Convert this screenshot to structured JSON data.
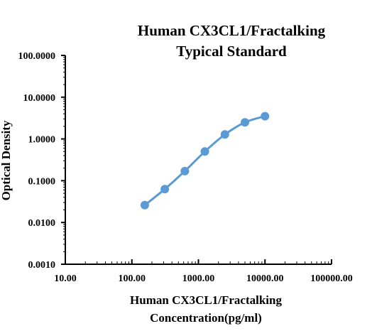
{
  "chart_data": {
    "type": "line",
    "title": [
      "Human CX3CL1/Fractalking",
      "Typical Standard"
    ],
    "xlabel": [
      "Human CX3CL1/Fractalking",
      "Concentration(pg/ml)"
    ],
    "ylabel": "Optical Density",
    "x_scale": "log",
    "y_scale": "log",
    "xlim": [
      10,
      100000
    ],
    "ylim": [
      0.001,
      100
    ],
    "x_ticks": [
      "10.00",
      "100.00",
      "1000.00",
      "10000.00",
      "100000.00"
    ],
    "y_ticks": [
      "0.0010",
      "0.0100",
      "0.1000",
      "1.0000",
      "10.0000",
      "100.0000"
    ],
    "grid": false,
    "series": [
      {
        "color": "#5b9bd5",
        "points": [
          {
            "x": 156.25,
            "y": 0.026
          },
          {
            "x": 312.5,
            "y": 0.063
          },
          {
            "x": 625,
            "y": 0.17
          },
          {
            "x": 1250,
            "y": 0.5
          },
          {
            "x": 2500,
            "y": 1.28
          },
          {
            "x": 5000,
            "y": 2.5
          },
          {
            "x": 10000,
            "y": 3.5
          }
        ]
      }
    ]
  }
}
